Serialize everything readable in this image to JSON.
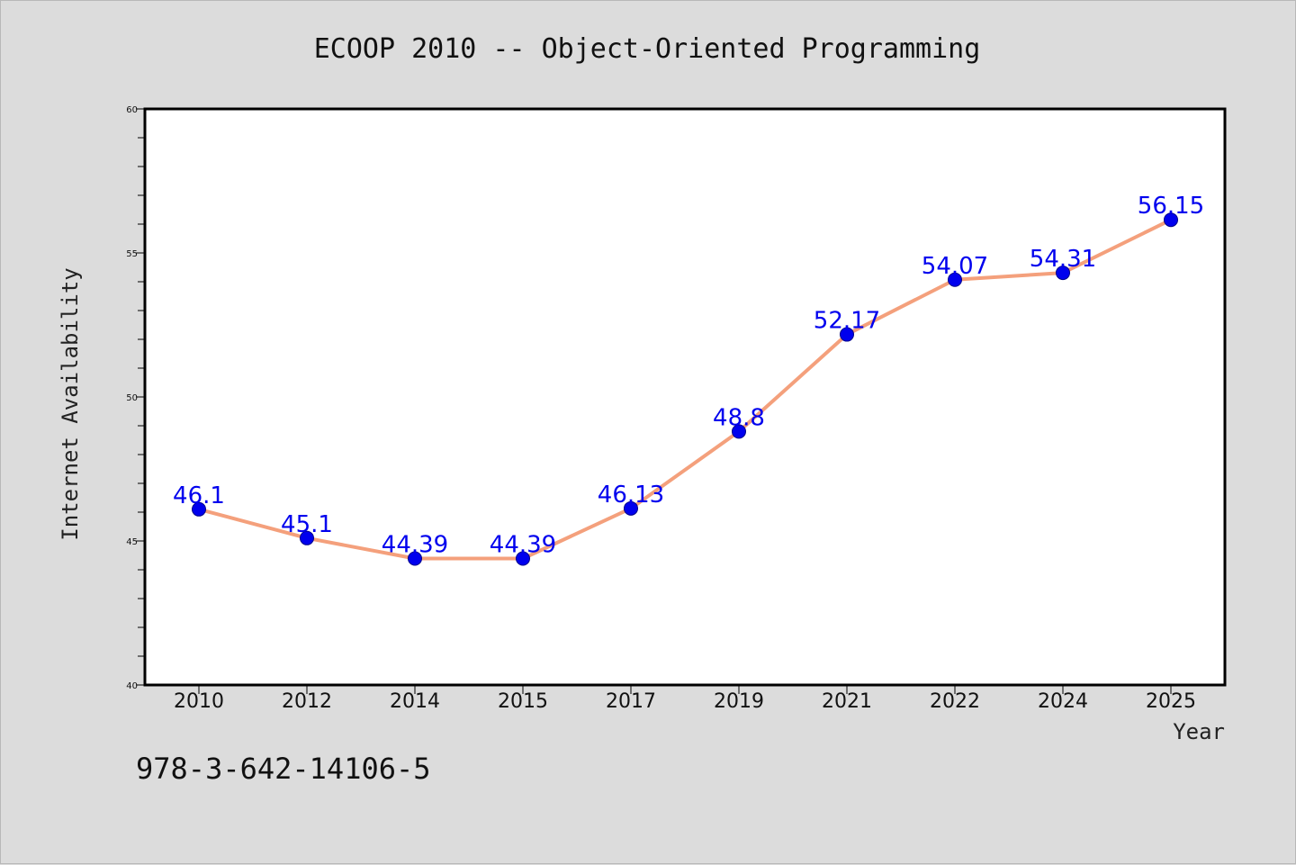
{
  "chart_data": {
    "type": "line",
    "title": "ECOOP 2010 -- Object-Oriented Programming",
    "xlabel": "Year",
    "ylabel": "Internet Availability",
    "categories": [
      "2010",
      "2012",
      "2014",
      "2015",
      "2017",
      "2019",
      "2021",
      "2022",
      "2024",
      "2025"
    ],
    "series": [
      {
        "values": [
          46.1,
          45.1,
          44.39,
          44.39,
          46.13,
          48.8,
          52.17,
          54.07,
          54.31,
          56.15
        ],
        "labels": [
          "46.1",
          "45.1",
          "44.39",
          "44.39",
          "46.13",
          "48.8",
          "52.17",
          "54.07",
          "54.31",
          "56.15"
        ]
      }
    ],
    "ylim": [
      40,
      60
    ],
    "yticks": [
      "40",
      "45",
      "50",
      "55",
      "60"
    ],
    "grid": false,
    "colors": {
      "line": "#f4a07c",
      "marker": "#0000ee",
      "label": "#0000ee"
    }
  },
  "footer": {
    "isbn": "978-3-642-14106-5"
  }
}
